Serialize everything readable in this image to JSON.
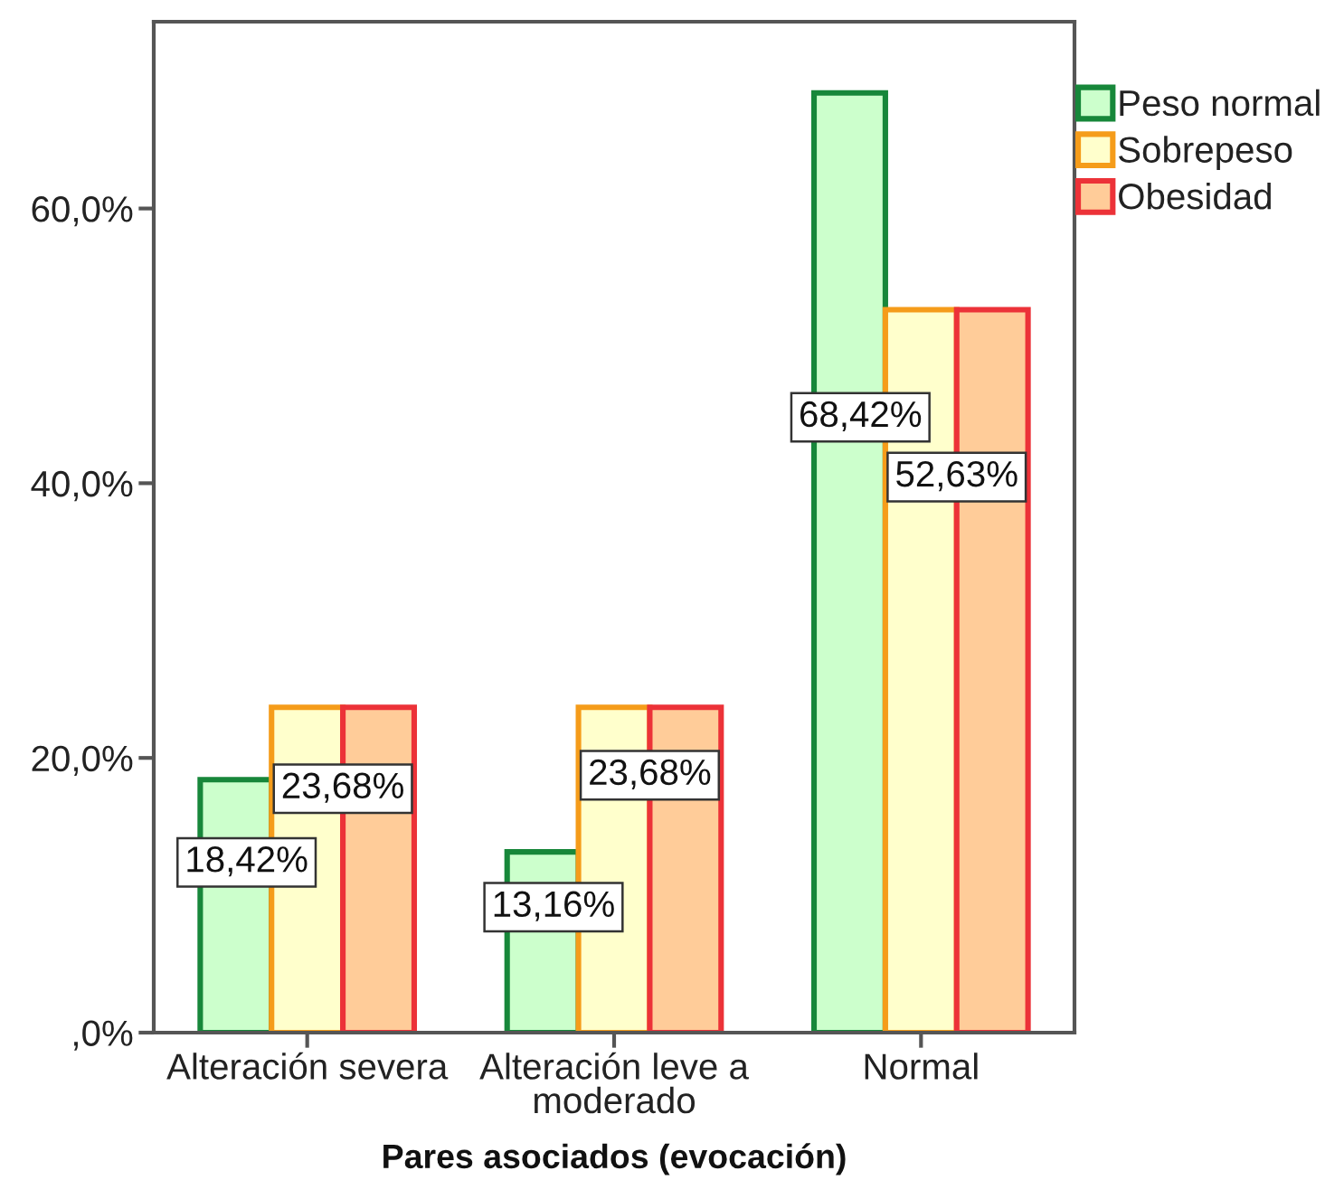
{
  "chart_data": {
    "type": "bar",
    "xlabel": "Pares asociados (evocación)",
    "categories": [
      "Alteración severa",
      "Alteración leve a moderado",
      "Normal"
    ],
    "series": [
      {
        "name": "Peso normal",
        "color": "#ccffcc",
        "values": [
          18.42,
          13.16,
          68.42
        ],
        "value_labels": [
          "18,42%",
          "13,16%",
          "68,42%"
        ]
      },
      {
        "name": "Sobrepeso",
        "color": "#ffffcc",
        "values": [
          23.68,
          23.68,
          52.63
        ],
        "value_labels": [
          "23,68%",
          "23,68%",
          "52,63%"
        ]
      },
      {
        "name": "Obesidad",
        "color": "#ffcc99",
        "values": [
          23.68,
          23.68,
          52.63
        ]
      }
    ],
    "ylim": [
      0,
      73.6
    ],
    "yticks": [
      {
        "value": 0,
        "label": ",0%"
      },
      {
        "value": 20,
        "label": "20,0%"
      },
      {
        "value": 40,
        "label": "40,0%"
      },
      {
        "value": 60,
        "label": "60,0%"
      }
    ],
    "grid": false,
    "legend": "top right"
  }
}
